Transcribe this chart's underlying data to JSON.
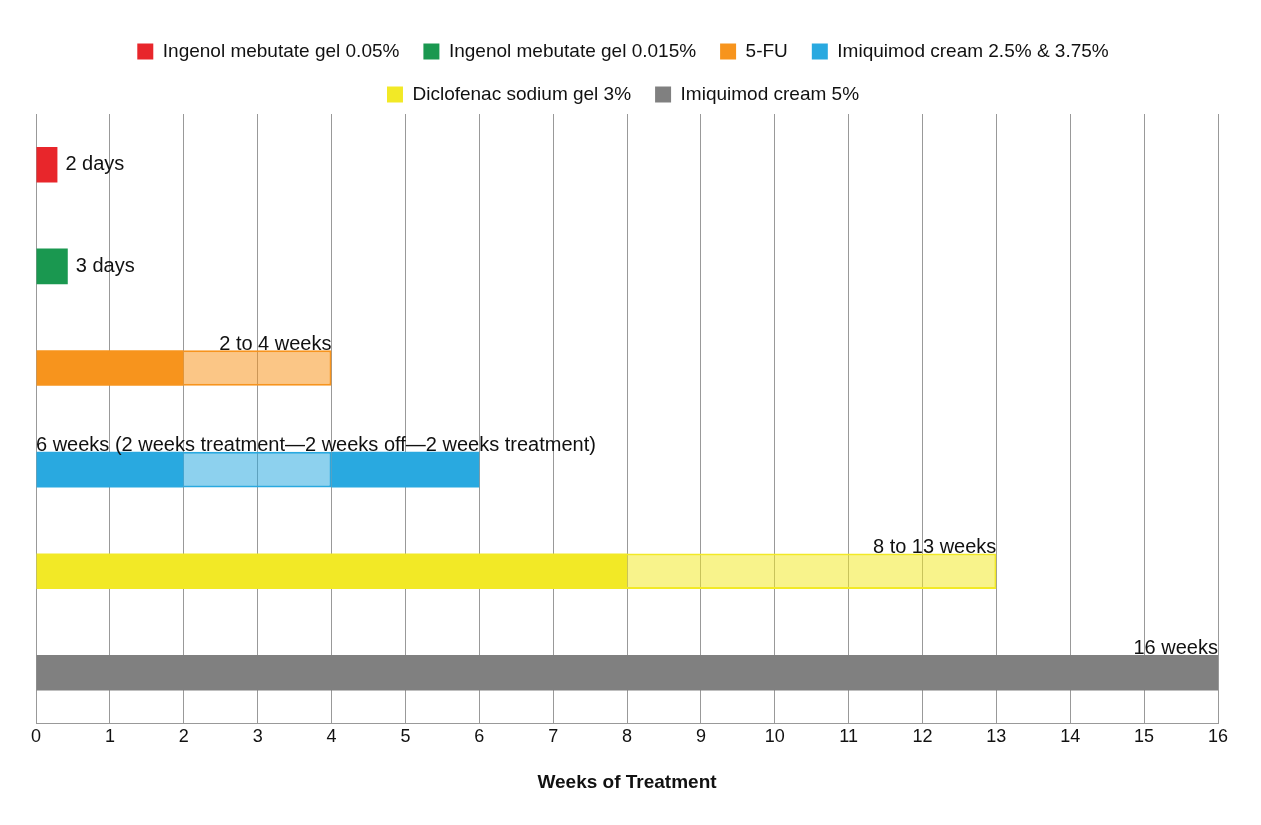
{
  "chart_data": {
    "type": "bar",
    "orientation": "horizontal",
    "stacked": true,
    "xlabel": "Weeks of Treatment",
    "categories": [
      null,
      null,
      null,
      null,
      null,
      null
    ],
    "series": [
      {
        "name": "Ingenol mebutate gel 0.05%",
        "color": "#e8262b",
        "values": [
          0.29,
          null,
          null,
          null,
          null,
          null
        ]
      },
      {
        "name": "Ingenol mebutate gel 0.015%",
        "color": "#1a9850",
        "values": [
          null,
          0.43,
          null,
          null,
          null,
          null
        ]
      },
      {
        "name": "5-FU",
        "color": "#f7941d",
        "values": [
          null,
          null,
          2,
          null,
          null,
          null
        ]
      },
      {
        "color": "#f7941d",
        "line_style": "dashed",
        "values": [
          null,
          null,
          2,
          null,
          null,
          null
        ]
      },
      {
        "name": "Imiquimod cream 2.5% & 3.75%",
        "color": "#29a9e0",
        "values": [
          null,
          null,
          null,
          2,
          null,
          null
        ]
      },
      {
        "color": "#29a9e0",
        "line_style": "dashed",
        "values": [
          null,
          null,
          null,
          2,
          null,
          null
        ]
      },
      {
        "color": "#29a9e0",
        "values": [
          null,
          null,
          null,
          2,
          null,
          null
        ]
      },
      {
        "name": "Diclofenac sodium gel 3%",
        "color": "#f2e926",
        "values": [
          null,
          null,
          null,
          null,
          8,
          null
        ]
      },
      {
        "color": "#f2e926",
        "line_style": "dashed",
        "values": [
          null,
          null,
          null,
          null,
          5,
          null
        ]
      },
      {
        "name": "Imiquimod cream 5%",
        "color": "#808080",
        "values": [
          null,
          null,
          null,
          null,
          null,
          16
        ]
      }
    ],
    "annotations": [
      "2 days",
      "3 days",
      "2 to 4 weeks",
      "6 weeks (2 weeks treatment—2 weeks off—2 weeks treatment)",
      "8 to 13 weeks",
      "16 weeks"
    ],
    "xlim": [
      0,
      16
    ],
    "xticks": [
      0,
      1,
      2,
      3,
      4,
      5,
      6,
      7,
      8,
      9,
      10,
      11,
      12,
      13,
      14,
      15,
      16
    ],
    "tick_labels": "x",
    "grid": "x",
    "legend": "top"
  }
}
